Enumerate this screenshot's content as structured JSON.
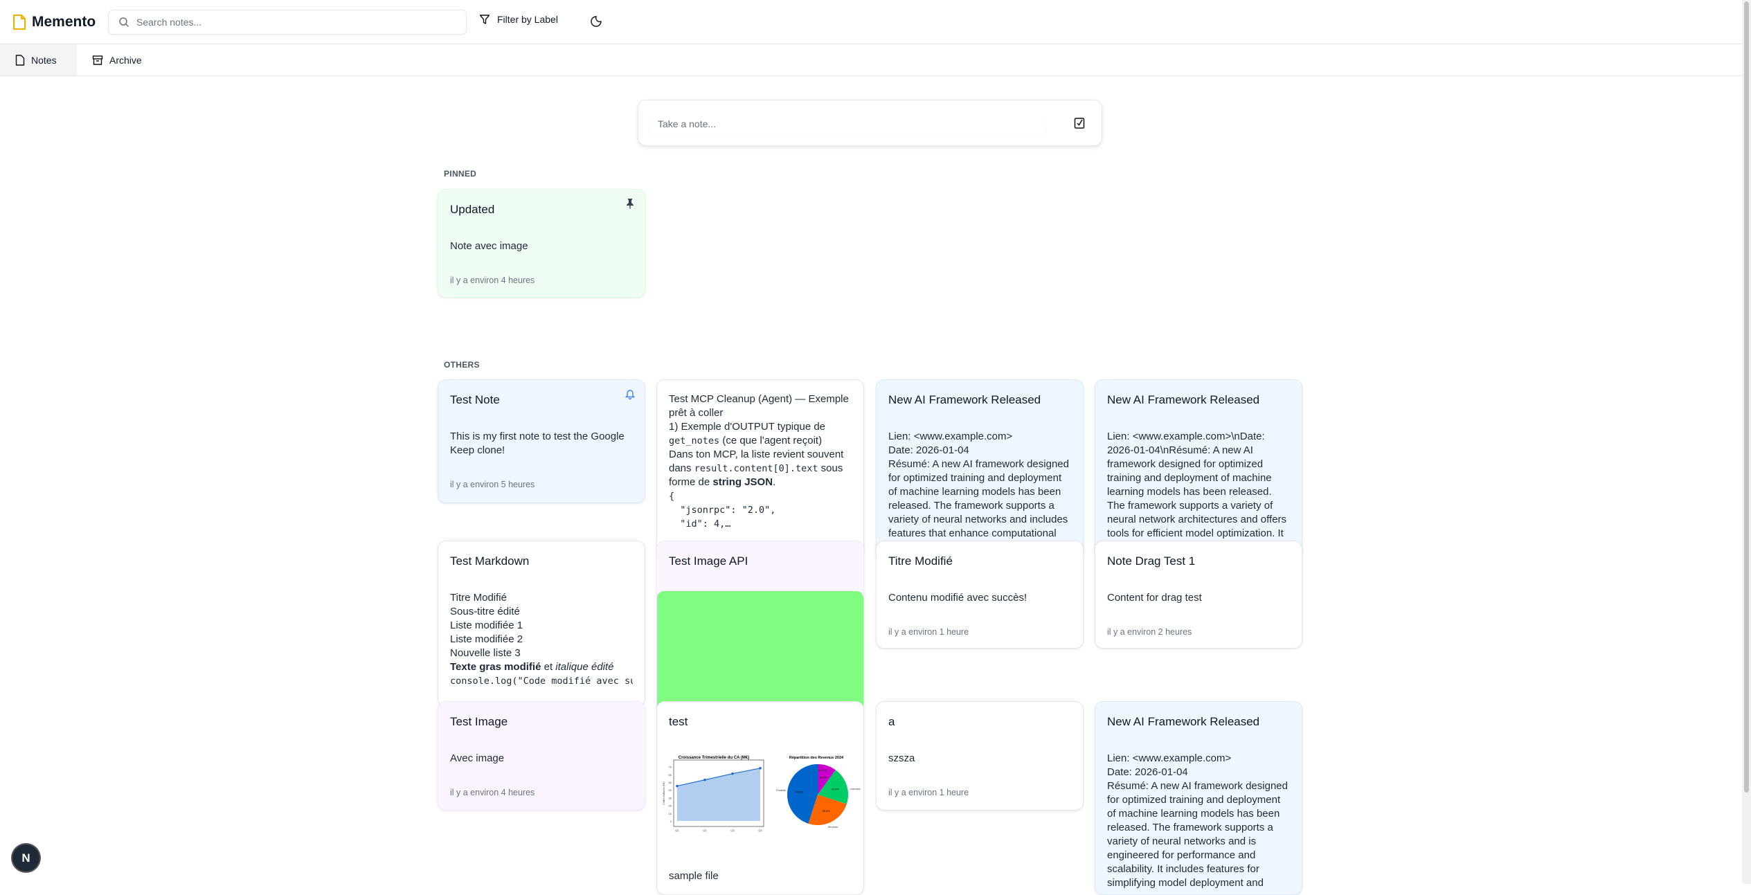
{
  "app": {
    "name": "Memento",
    "accent": "#eab308"
  },
  "header": {
    "search_placeholder": "Search notes...",
    "filter_label": "Filter by Label",
    "theme_icon": "moon-icon"
  },
  "tabs": [
    {
      "label": "Notes",
      "icon": "file-icon",
      "active": true
    },
    {
      "label": "Archive",
      "icon": "archive-icon",
      "active": false
    }
  ],
  "composer": {
    "placeholder": "Take a note...",
    "icon": "checkbox-icon"
  },
  "sections": {
    "pinned": "PINNED",
    "others": "OTHERS"
  },
  "colors": {
    "blue": "#eff6ff",
    "green": "#f0fdf4",
    "purple": "#faf5ff",
    "white": "#ffffff",
    "image_green": "#80fc80"
  },
  "notes": [
    {
      "title": "Updated",
      "color": "green",
      "icon": "pin-icon",
      "body": [
        [
          {
            "t": "Note avec image"
          }
        ]
      ],
      "timestamp": "il y a environ 4 heures",
      "pinned": true
    },
    {
      "title": "Test Note",
      "color": "blue",
      "icon": "bell-icon",
      "body": [
        [
          {
            "t": "This is my first note to test the Google Keep clone!"
          }
        ]
      ],
      "timestamp": "il y a environ 5 heures"
    },
    {
      "title": "",
      "color": "white",
      "body": [
        [
          {
            "t": "Test MCP Cleanup (Agent) — Exemple prêt à coller"
          }
        ],
        [
          {
            "t": "1) Exemple d'OUTPUT typique de "
          },
          {
            "t": "get_notes",
            "s": "code"
          },
          {
            "t": " (ce que l'agent reçoit)"
          }
        ],
        [
          {
            "t": "Dans ton MCP, la liste revient souvent dans "
          },
          {
            "t": "result.content[0].text",
            "s": "code"
          },
          {
            "t": " sous forme de "
          },
          {
            "t": "string JSON",
            "s": "b"
          },
          {
            "t": "."
          }
        ],
        [
          {
            "t": "{",
            "s": "code"
          }
        ],
        [
          {
            "t": "  \"jsonrpc\": \"2.0\",",
            "s": "code"
          }
        ],
        [
          {
            "t": "  \"id\": 4,…",
            "s": "code"
          }
        ]
      ]
    },
    {
      "title": "New AI Framework Released",
      "color": "blue",
      "body": [
        [
          {
            "t": "Lien: <www.example.com>"
          }
        ],
        [
          {
            "t": "Date: 2026-01-04"
          }
        ],
        [
          {
            "t": "Résumé: A new AI framework designed for optimized training and deployment of machine learning models has been released. The framework supports a variety of neural networks and includes features that enhance computational"
          }
        ]
      ]
    },
    {
      "title": "New AI Framework Released",
      "color": "blue",
      "body": [
        [
          {
            "t": "Lien: <www.example.com>\\nDate: 2026-01-04\\nRésumé: A new AI framework designed for optimized training and deployment of machine learning models has been released. The framework supports a variety of neural network architectures and offers tools for efficient model optimization. It is"
          }
        ]
      ]
    },
    {
      "title": "Test Markdown",
      "color": "white",
      "body": [
        [
          {
            "t": "Titre Modifié"
          }
        ],
        [
          {
            "t": "Sous-titre édité"
          }
        ],
        [
          {
            "t": "Liste modifiée 1"
          }
        ],
        [
          {
            "t": "Liste modifiée 2"
          }
        ],
        [
          {
            "t": "Nouvelle liste 3"
          }
        ],
        [
          {
            "t": "Texte gras modifié",
            "s": "b"
          },
          {
            "t": " et "
          },
          {
            "t": "italique édité",
            "s": "i"
          }
        ],
        [
          {
            "t": "console.log(\"Code modifié avec succès\");",
            "s": "codeline"
          }
        ]
      ]
    },
    {
      "title": "Test Image API",
      "color": "purple",
      "image": "green-block",
      "body": []
    },
    {
      "title": "Titre Modifié",
      "color": "white",
      "body": [
        [
          {
            "t": "Contenu modifié avec succès!"
          }
        ]
      ],
      "timestamp": "il y a environ 1 heure"
    },
    {
      "title": "Note Drag Test 1",
      "color": "white",
      "body": [
        [
          {
            "t": "Content for drag test"
          }
        ]
      ],
      "timestamp": "il y a environ 2 heures"
    },
    {
      "title": "Test Image",
      "color": "purple",
      "body": [
        [
          {
            "t": "Avec image"
          }
        ]
      ],
      "timestamp": "il y a environ 4 heures"
    },
    {
      "title": "test",
      "color": "white",
      "image": "charts",
      "body": [
        [
          {
            "t": "sample file"
          }
        ]
      ]
    },
    {
      "title": "a",
      "color": "white",
      "body": [
        [
          {
            "t": "szsza"
          }
        ]
      ],
      "timestamp": "il y a environ 1 heure"
    },
    {
      "title": "New AI Framework Released",
      "color": "blue",
      "body": [
        [
          {
            "t": "Lien: <www.example.com>"
          }
        ],
        [
          {
            "t": "Date: 2026-01-04"
          }
        ],
        [
          {
            "t": "Résumé: A new AI framework designed for optimized training and deployment of machine learning models has been released. The framework supports a variety of neural networks and is engineered for performance and scalability. It includes features for simplifying model deployment and"
          }
        ]
      ]
    }
  ],
  "embedded_image": {
    "line_title": "Croissance Trimestrielle du CA (M€)",
    "line_ylabel": "Chiffre d'affaires (M€)",
    "line_x": [
      "Q1",
      "Q2",
      "Q3",
      "Q4"
    ],
    "line_y": [
      45,
      53,
      61,
      68
    ],
    "line_yticks": [
      0,
      10,
      20,
      30,
      40,
      50,
      60,
      70
    ],
    "pie_title": "Répartition des Revenus 2024",
    "pie": [
      {
        "label": "Consulting",
        "value": 10,
        "pct": "10.0%",
        "color": "#cc00cc"
      },
      {
        "label": "Licences",
        "value": 20,
        "pct": "20.0%",
        "color": "#00cc66"
      },
      {
        "label": "Services",
        "value": 25,
        "pct": "25.0%",
        "color": "#ff6600"
      },
      {
        "label": "Produits",
        "value": 45,
        "pct": "45.0%",
        "color": "#0066cc"
      }
    ]
  },
  "badge": {
    "letter": "N"
  }
}
